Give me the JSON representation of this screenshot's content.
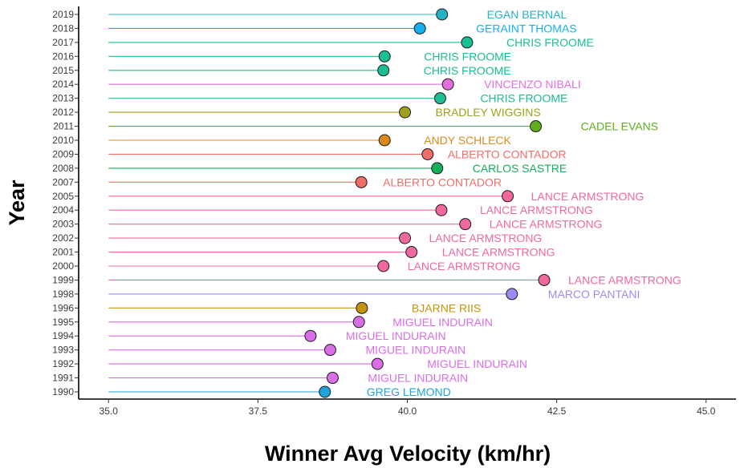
{
  "chart_data": {
    "type": "lollipop",
    "xlabel": "Winner Avg Velocity (km/hr)",
    "ylabel": "Year",
    "xlim": [
      34.5,
      45.5
    ],
    "x_ticks": [
      "35.0",
      "37.5",
      "40.0",
      "42.5",
      "45.0"
    ],
    "baseline": 35.0,
    "grid": false,
    "legend": "none",
    "colors": {
      "EGAN BERNAL": "#24b3c4",
      "GERAINT THOMAS": "#14b0eb",
      "CHRIS FROOME": "#1bbd92",
      "VINCENZO NIBALI": "#e36ee0",
      "BRADLEY WIGGINS": "#9fa11d",
      "CADEL EVANS": "#5eae1d",
      "ANDY SCHLECK": "#d98b15",
      "ALBERTO CONTADOR": "#f06e6a",
      "CARLOS SASTRE": "#13b05c",
      "LANCE ARMSTRONG": "#f0689e",
      "MARCO PANTANI": "#9f8bf0",
      "BJARNE RIIS": "#c4920f",
      "MIGUEL INDURAIN": "#d96ee8",
      "GREG LEMOND": "#1fa3dd"
    },
    "points": [
      {
        "year": "2019",
        "velocity": 40.58,
        "winner": "EGAN BERNAL"
      },
      {
        "year": "2018",
        "velocity": 40.21,
        "winner": "GERAINT THOMAS"
      },
      {
        "year": "2017",
        "velocity": 41.0,
        "winner": "CHRIS FROOME"
      },
      {
        "year": "2016",
        "velocity": 39.62,
        "winner": "CHRIS FROOME"
      },
      {
        "year": "2015",
        "velocity": 39.6,
        "winner": "CHRIS FROOME"
      },
      {
        "year": "2014",
        "velocity": 40.68,
        "winner": "VINCENZO NIBALI"
      },
      {
        "year": "2013",
        "velocity": 40.55,
        "winner": "CHRIS FROOME"
      },
      {
        "year": "2012",
        "velocity": 39.96,
        "winner": "BRADLEY WIGGINS"
      },
      {
        "year": "2011",
        "velocity": 42.15,
        "winner": "CADEL EVANS"
      },
      {
        "year": "2010",
        "velocity": 39.62,
        "winner": "ANDY SCHLECK"
      },
      {
        "year": "2009",
        "velocity": 40.34,
        "winner": "ALBERTO CONTADOR"
      },
      {
        "year": "2008",
        "velocity": 40.5,
        "winner": "CARLOS SASTRE"
      },
      {
        "year": "2007",
        "velocity": 39.23,
        "winner": "ALBERTO CONTADOR"
      },
      {
        "year": "2005",
        "velocity": 41.68,
        "winner": "LANCE ARMSTRONG"
      },
      {
        "year": "2004",
        "velocity": 40.57,
        "winner": "LANCE ARMSTRONG"
      },
      {
        "year": "2003",
        "velocity": 40.97,
        "winner": "LANCE ARMSTRONG"
      },
      {
        "year": "2002",
        "velocity": 39.96,
        "winner": "LANCE ARMSTRONG"
      },
      {
        "year": "2001",
        "velocity": 40.07,
        "winner": "LANCE ARMSTRONG"
      },
      {
        "year": "2000",
        "velocity": 39.6,
        "winner": "LANCE ARMSTRONG"
      },
      {
        "year": "1999",
        "velocity": 42.29,
        "winner": "LANCE ARMSTRONG"
      },
      {
        "year": "1998",
        "velocity": 41.75,
        "winner": "MARCO PANTANI"
      },
      {
        "year": "1996",
        "velocity": 39.24,
        "winner": "BJARNE RIIS"
      },
      {
        "year": "1995",
        "velocity": 39.19,
        "winner": "MIGUEL INDURAIN"
      },
      {
        "year": "1994",
        "velocity": 38.38,
        "winner": "MIGUEL INDURAIN"
      },
      {
        "year": "1993",
        "velocity": 38.71,
        "winner": "MIGUEL INDURAIN"
      },
      {
        "year": "1992",
        "velocity": 39.5,
        "winner": "MIGUEL INDURAIN"
      },
      {
        "year": "1991",
        "velocity": 38.75,
        "winner": "MIGUEL INDURAIN"
      },
      {
        "year": "1990",
        "velocity": 38.62,
        "winner": "GREG LEMOND"
      }
    ]
  }
}
